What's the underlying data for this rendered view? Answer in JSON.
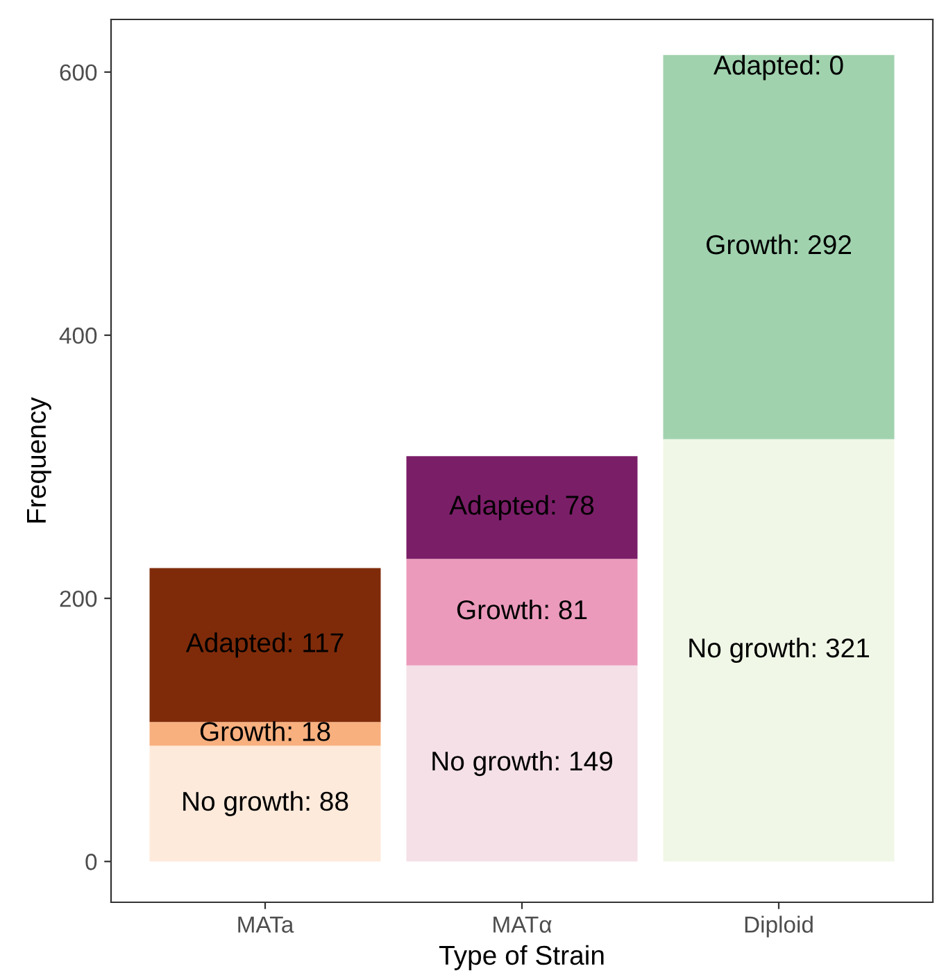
{
  "chart_data": {
    "type": "bar",
    "stacked": true,
    "xlabel": "Type of Strain",
    "ylabel": "Frequency",
    "categories": [
      "MATa",
      "MATα",
      "Diploid"
    ],
    "series": [
      {
        "colors": [
          "#feeadb",
          "#f5e0e8",
          "#f0f7e6"
        ],
        "values": [
          88,
          149,
          321
        ],
        "value_labels": [
          "No growth: 88",
          "No growth: 149",
          "No growth: 321"
        ]
      },
      {
        "colors": [
          "#f8b07f",
          "#eb9abc",
          "#a0d2ae"
        ],
        "values": [
          18,
          81,
          292
        ],
        "value_labels": [
          "Growth: 18",
          "Growth: 81",
          "Growth: 292"
        ]
      },
      {
        "colors": [
          "#7f2b0a",
          "#7b1e68",
          "#41ab5d"
        ],
        "values": [
          117,
          78,
          0
        ],
        "value_labels": [
          "Adapted: 117",
          "Adapted: 78",
          "Adapted: 0"
        ]
      }
    ],
    "ylim": [
      -31,
      640
    ],
    "yticks": [
      0,
      200,
      400,
      600
    ],
    "grid": false
  }
}
